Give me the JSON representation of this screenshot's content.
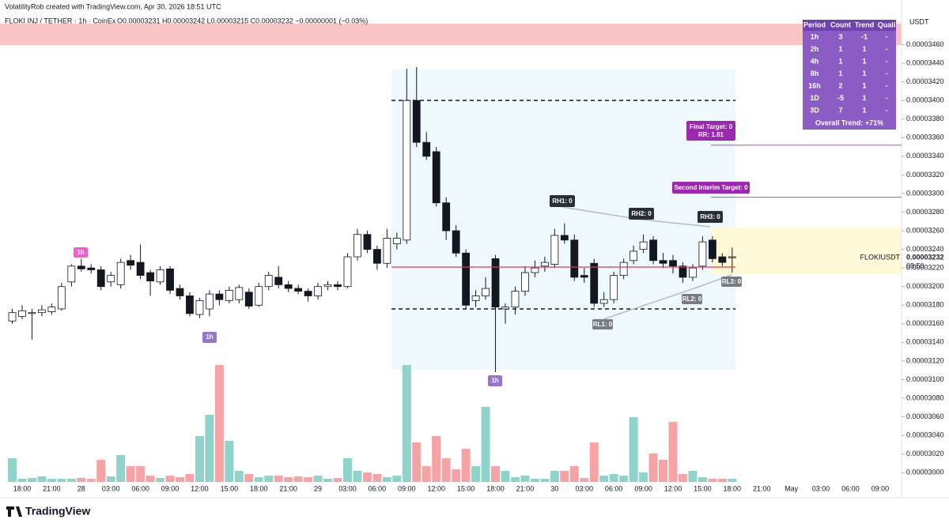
{
  "header": {
    "watermark": "VolatilityRob created with TradingView.com, Apr 30, 2026 18:51 UTC",
    "symbol": "FLOKI INJ / TETHER · 1h · CoinEx",
    "ohlc": "O0.00003231 H0.00003242 L0.00003215 C0.00003232 −0.00000001 (−0.03%)",
    "currency": "USDT",
    "logo": "TradingView"
  },
  "price_label": {
    "name": "FLOKIUSDT",
    "price": "0.00003232",
    "countdown": "08:50"
  },
  "table": {
    "columns": [
      "Period",
      "Count",
      "Trend",
      "Quali"
    ],
    "rows": [
      [
        "1h",
        "3",
        "-1",
        "-"
      ],
      [
        "2h",
        "1",
        "1",
        "-"
      ],
      [
        "4h",
        "1",
        "1",
        "-"
      ],
      [
        "8h",
        "1",
        "1",
        "-"
      ],
      [
        "16h",
        "2",
        "1",
        "-"
      ],
      [
        "1D",
        "-5",
        "1",
        "-"
      ],
      [
        "3D",
        "7",
        "1",
        "-"
      ]
    ],
    "footer": "Overall Trend: +71%"
  },
  "annotations": {
    "rh": [
      "RH1: 0",
      "RH2: 0",
      "RH3: 0"
    ],
    "rl": [
      "RL1: 0",
      "RL2: 0",
      "RL3: 0"
    ],
    "final_target": "Final Target: 0",
    "rr": "RR: 1.81",
    "second_target": "Second Interim Target: 0",
    "markers": [
      "1h",
      "1h",
      "1h"
    ]
  },
  "chart_data": {
    "type": "candlestick",
    "categories": [
      null,
      "18:00",
      null,
      null,
      "21:00",
      null,
      null,
      "28",
      null,
      null,
      "03:00",
      null,
      null,
      "06:00",
      null,
      null,
      "09:00",
      null,
      null,
      "12:00",
      null,
      null,
      "15:00",
      null,
      null,
      "18:00",
      null,
      null,
      "21:00",
      null,
      null,
      "29",
      null,
      null,
      "03:00",
      null,
      null,
      "06:00",
      null,
      null,
      "09:00",
      null,
      null,
      "12:00",
      null,
      null,
      "15:00",
      null,
      null,
      "18:00",
      null,
      null,
      "21:00",
      null,
      null,
      "30",
      null,
      null,
      "03:00",
      null,
      null,
      "06:00",
      null,
      null,
      "09:00",
      null,
      null,
      "12:00",
      null,
      null,
      "15:00",
      null,
      null,
      "18:00",
      null,
      null,
      "21:00",
      null,
      null,
      "May",
      null,
      null,
      "03:00",
      null,
      null,
      "06:00",
      null,
      null,
      "09:00"
    ],
    "open": [
      3.163e-05,
      3.168e-05,
      3.171e-05,
      3.172e-05,
      3.173e-05,
      3.176e-05,
      3.205e-05,
      3.222e-05,
      3.22e-05,
      3.218e-05,
      3.205e-05,
      3.202e-05,
      3.228e-05,
      3.226e-05,
      3.215e-05,
      3.205e-05,
      3.219e-05,
      3.198e-05,
      3.19e-05,
      3.17e-05,
      3.176e-05,
      3.192e-05,
      3.185e-05,
      3.186e-05,
      3.194e-05,
      3.18e-05,
      3.2e-05,
      3.21e-05,
      3.202e-05,
      3.198e-05,
      3.195e-05,
      3.19e-05,
      3.2e-05,
      3.202e-05,
      3.2e-05,
      3.232e-05,
      3.256e-05,
      3.24e-05,
      3.225e-05,
      3.246e-05,
      3.25e-05,
      3.4e-05,
      3.355e-05,
      3.345e-05,
      3.29e-05,
      3.26e-05,
      3.236e-05,
      3.185e-05,
      3.19e-05,
      3.23e-05,
      3.176e-05,
      3.178e-05,
      3.195e-05,
      3.215e-05,
      3.222e-05,
      3.224e-05,
      3.255e-05,
      3.25e-05,
      3.212e-05,
      3.225e-05,
      3.182e-05,
      3.186e-05,
      3.212e-05,
      3.228e-05,
      3.24e-05,
      3.25e-05,
      3.228e-05,
      3.228e-05,
      3.222e-05,
      3.21e-05,
      3.222e-05,
      3.25e-05,
      3.232e-05,
      3.231e-05,
      null,
      null,
      null,
      null,
      null,
      null,
      null,
      null,
      null,
      null,
      null,
      null,
      null,
      null,
      null
    ],
    "high": [
      3.176e-05,
      3.18e-05,
      3.176e-05,
      3.18e-05,
      3.182e-05,
      3.204e-05,
      3.224e-05,
      3.23e-05,
      3.224e-05,
      3.222e-05,
      3.216e-05,
      3.23e-05,
      3.234e-05,
      3.245e-05,
      3.218e-05,
      3.222e-05,
      3.222e-05,
      3.202e-05,
      3.194e-05,
      3.188e-05,
      3.196e-05,
      3.196e-05,
      3.2e-05,
      3.202e-05,
      3.198e-05,
      3.204e-05,
      3.216e-05,
      3.222e-05,
      3.206e-05,
      3.202e-05,
      3.198e-05,
      3.204e-05,
      3.206e-05,
      3.206e-05,
      3.236e-05,
      3.262e-05,
      3.26e-05,
      3.244e-05,
      3.262e-05,
      3.258e-05,
      3.434e-05,
      3.436e-05,
      3.366e-05,
      3.35e-05,
      3.296e-05,
      3.266e-05,
      3.24e-05,
      3.196e-05,
      3.21e-05,
      3.234e-05,
      3.182e-05,
      3.2e-05,
      3.222e-05,
      3.228e-05,
      3.232e-05,
      3.262e-05,
      3.268e-05,
      3.256e-05,
      3.22e-05,
      3.23e-05,
      3.194e-05,
      3.216e-05,
      3.23e-05,
      3.244e-05,
      3.256e-05,
      3.254e-05,
      3.236e-05,
      3.234e-05,
      3.226e-05,
      3.224e-05,
      3.254e-05,
      3.254e-05,
      3.236e-05,
      3.242e-05,
      null,
      null,
      null,
      null,
      null,
      null,
      null,
      null,
      null,
      null,
      null,
      null,
      null,
      null,
      null
    ],
    "low": [
      3.16e-05,
      3.165e-05,
      3.143e-05,
      3.168e-05,
      3.17e-05,
      3.174e-05,
      3.2e-05,
      3.216e-05,
      3.214e-05,
      3.196e-05,
      3.2e-05,
      3.198e-05,
      3.218e-05,
      3.208e-05,
      3.19e-05,
      3.202e-05,
      3.192e-05,
      3.186e-05,
      3.168e-05,
      3.166e-05,
      3.168e-05,
      3.18e-05,
      3.182e-05,
      3.182e-05,
      3.176e-05,
      3.178e-05,
      3.196e-05,
      3.198e-05,
      3.194e-05,
      3.192e-05,
      3.184e-05,
      3.186e-05,
      3.196e-05,
      3.196e-05,
      3.198e-05,
      3.228e-05,
      3.236e-05,
      3.218e-05,
      3.22e-05,
      3.24e-05,
      3.246e-05,
      3.35e-05,
      3.336e-05,
      3.286e-05,
      3.25e-05,
      3.232e-05,
      3.176e-05,
      3.178e-05,
      3.186e-05,
      3.108e-05,
      3.16e-05,
      3.17e-05,
      3.19e-05,
      3.21e-05,
      3.216e-05,
      3.22e-05,
      3.246e-05,
      3.206e-05,
      3.204e-05,
      3.178e-05,
      3.178e-05,
      3.182e-05,
      3.208e-05,
      3.224e-05,
      3.236e-05,
      3.224e-05,
      3.22e-05,
      3.214e-05,
      3.204e-05,
      3.206e-05,
      3.218e-05,
      3.226e-05,
      3.222e-05,
      3.215e-05,
      null,
      null,
      null,
      null,
      null,
      null,
      null,
      null,
      null,
      null,
      null,
      null,
      null,
      null,
      null
    ],
    "close": [
      3.172e-05,
      3.174e-05,
      3.172e-05,
      3.175e-05,
      3.178e-05,
      3.2e-05,
      3.222e-05,
      3.219e-05,
      3.218e-05,
      3.2e-05,
      3.212e-05,
      3.226e-05,
      3.223e-05,
      3.212e-05,
      3.206e-05,
      3.218e-05,
      3.196e-05,
      3.19e-05,
      3.171e-05,
      3.185e-05,
      3.192e-05,
      3.186e-05,
      3.196e-05,
      3.199e-05,
      3.179e-05,
      3.2e-05,
      3.212e-05,
      3.202e-05,
      3.198e-05,
      3.195e-05,
      3.19e-05,
      3.2e-05,
      3.202e-05,
      3.2e-05,
      3.232e-05,
      3.256e-05,
      3.24e-05,
      3.225e-05,
      3.252e-05,
      3.252e-05,
      3.4e-05,
      3.355e-05,
      3.34e-05,
      3.29e-05,
      3.26e-05,
      3.236e-05,
      3.18e-05,
      3.19e-05,
      3.198e-05,
      3.178e-05,
      3.178e-05,
      3.195e-05,
      3.215e-05,
      3.22e-05,
      3.226e-05,
      3.255e-05,
      3.25e-05,
      3.21e-05,
      3.21e-05,
      3.182e-05,
      3.186e-05,
      3.212e-05,
      3.226e-05,
      3.238e-05,
      3.248e-05,
      3.228e-05,
      3.225e-05,
      3.222e-05,
      3.21e-05,
      3.22e-05,
      3.248e-05,
      3.23e-05,
      3.226e-05,
      3.232e-05,
      null,
      null,
      null,
      null,
      null,
      null,
      null,
      null,
      null,
      null,
      null,
      null,
      null,
      null,
      null
    ],
    "volume": [
      30,
      4,
      5,
      7,
      4,
      4,
      4,
      5,
      4,
      28,
      7,
      34,
      20,
      20,
      8,
      5,
      8,
      6,
      10,
      58,
      85,
      148,
      52,
      14,
      10,
      6,
      8,
      8,
      6,
      7,
      6,
      8,
      4,
      5,
      30,
      14,
      12,
      10,
      6,
      8,
      148,
      50,
      20,
      58,
      30,
      16,
      42,
      20,
      95,
      20,
      14,
      6,
      8,
      4,
      4,
      14,
      14,
      20,
      5,
      50,
      8,
      10,
      8,
      82,
      12,
      36,
      28,
      76,
      10,
      14,
      6,
      4,
      4,
      4,
      null,
      null,
      null,
      null,
      null,
      null,
      null,
      null,
      null,
      null,
      null,
      null,
      null,
      null,
      null
    ],
    "up_color": "#ffffff",
    "down_color": "#131722",
    "volume_up_color": "#8fd3ca",
    "volume_down_color": "#f5a3a4",
    "levels": {
      "range_high": 3.4e-05,
      "range_low": 3.176e-05,
      "entry": 3.221e-05,
      "final_target": 3.352e-05,
      "second_target": 3.296e-05
    },
    "ylim": [
      2.99e-05,
      3.508e-05
    ],
    "yticks": [
      {
        "value": 3e-05,
        "label": "0.00003000"
      },
      {
        "value": 3.02e-05,
        "label": "0.00003020"
      },
      {
        "value": 3.04e-05,
        "label": "0.00003040"
      },
      {
        "value": 3.06e-05,
        "label": "0.00003060"
      },
      {
        "value": 3.08e-05,
        "label": "0.00003080"
      },
      {
        "value": 3.1e-05,
        "label": "0.00003100"
      },
      {
        "value": 3.12e-05,
        "label": "0.00003120"
      },
      {
        "value": 3.14e-05,
        "label": "0.00003140"
      },
      {
        "value": 3.16e-05,
        "label": "0.00003160"
      },
      {
        "value": 3.18e-05,
        "label": "0.00003180"
      },
      {
        "value": 3.2e-05,
        "label": "0.00003200"
      },
      {
        "value": 3.22e-05,
        "label": "0.00003220"
      },
      {
        "value": 3.24e-05,
        "label": "0.00003240"
      },
      {
        "value": 3.26e-05,
        "label": "0.00003260"
      },
      {
        "value": 3.28e-05,
        "label": "0.00003280"
      },
      {
        "value": 3.3e-05,
        "label": "0.00003300"
      },
      {
        "value": 3.32e-05,
        "label": "0.00003320"
      },
      {
        "value": 3.34e-05,
        "label": "0.00003340"
      },
      {
        "value": 3.36e-05,
        "label": "0.00003360"
      },
      {
        "value": 3.38e-05,
        "label": "0.00003380"
      },
      {
        "value": 3.4e-05,
        "label": "0.00003400"
      },
      {
        "value": 3.42e-05,
        "label": "0.00003420"
      },
      {
        "value": 3.44e-05,
        "label": "0.00003440"
      },
      {
        "value": 3.46e-05,
        "label": "0.00003460"
      }
    ],
    "grid": false
  }
}
